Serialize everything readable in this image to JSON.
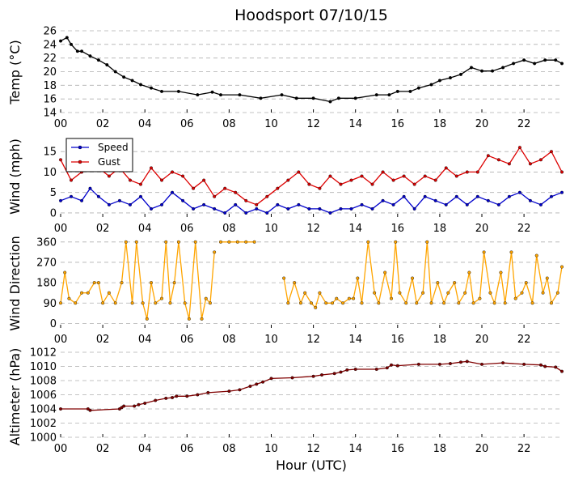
{
  "colors": {
    "temp": "#000000",
    "speed": "#0000cc",
    "gust": "#dd0000",
    "direction": "#ffa500",
    "altimeter": "#800000",
    "grid": "#b0b0b0"
  },
  "chart_data": [
    {
      "type": "line",
      "title": "Hoodsport 07/10/15",
      "xlabel": "",
      "ylabel": "Temp (°C)",
      "xlim": [
        0,
        23.8
      ],
      "ylim": [
        14,
        26
      ],
      "yticks": [
        14,
        16,
        18,
        20,
        22,
        24,
        26
      ],
      "xticks": [
        "00",
        "02",
        "04",
        "06",
        "08",
        "10",
        "12",
        "14",
        "16",
        "18",
        "20",
        "22"
      ],
      "grid": true,
      "series": [
        {
          "color": "temp",
          "x": [
            0,
            0.3,
            0.5,
            0.8,
            1.0,
            1.4,
            1.8,
            2.2,
            2.6,
            3.0,
            3.4,
            3.8,
            4.3,
            4.8,
            5.6,
            6.5,
            7.2,
            7.6,
            8.5,
            9.5,
            10.5,
            11.2,
            12.0,
            12.8,
            13.2,
            14.0,
            15.0,
            15.6,
            16.0,
            16.6,
            17.0,
            17.6,
            18.0,
            18.5,
            19.0,
            19.5,
            20.0,
            20.5,
            21.0,
            21.5,
            22.0,
            22.5,
            23.0,
            23.5,
            23.8
          ],
          "y": [
            24.5,
            25,
            24,
            23,
            23,
            22.3,
            21.7,
            21,
            20,
            19.2,
            18.7,
            18.1,
            17.6,
            17.1,
            17.1,
            16.6,
            17,
            16.6,
            16.6,
            16.1,
            16.6,
            16.1,
            16.1,
            15.6,
            16.1,
            16.1,
            16.6,
            16.6,
            17.1,
            17.1,
            17.6,
            18.1,
            18.7,
            19.1,
            19.6,
            20.6,
            20.1,
            20.1,
            20.6,
            21.2,
            21.7,
            21.2,
            21.7,
            21.7,
            21.2
          ]
        }
      ]
    },
    {
      "type": "line",
      "title": "",
      "xlabel": "",
      "ylabel": "Wind (mph)",
      "xlim": [
        0,
        23.8
      ],
      "ylim": [
        -1,
        19
      ],
      "yticks": [
        0,
        5,
        10,
        15
      ],
      "xticks": [
        "00",
        "02",
        "04",
        "06",
        "08",
        "10",
        "12",
        "14",
        "16",
        "18",
        "20",
        "22"
      ],
      "grid": true,
      "legend": "top-left",
      "series": [
        {
          "name": "Speed",
          "color": "speed",
          "x": [
            0,
            0.5,
            1.0,
            1.4,
            1.8,
            2.3,
            2.8,
            3.3,
            3.8,
            4.3,
            4.8,
            5.3,
            5.8,
            6.3,
            6.8,
            7.3,
            7.8,
            8.3,
            8.8,
            9.3,
            9.8,
            10.3,
            10.8,
            11.3,
            11.8,
            12.3,
            12.8,
            13.3,
            13.8,
            14.3,
            14.8,
            15.3,
            15.8,
            16.3,
            16.8,
            17.3,
            17.8,
            18.3,
            18.8,
            19.3,
            19.8,
            20.3,
            20.8,
            21.3,
            21.8,
            22.3,
            22.8,
            23.3,
            23.8
          ],
          "y": [
            3,
            4,
            3,
            6,
            4,
            2,
            3,
            2,
            4,
            1,
            2,
            5,
            3,
            1,
            2,
            1,
            0,
            2,
            0,
            1,
            0,
            2,
            1,
            2,
            1,
            1,
            0,
            1,
            1,
            2,
            1,
            3,
            2,
            4,
            1,
            4,
            3,
            2,
            4,
            2,
            4,
            3,
            2,
            4,
            5,
            3,
            2,
            4,
            5
          ]
        },
        {
          "name": "Gust",
          "color": "gust",
          "x": [
            0,
            0.5,
            1.0,
            1.4,
            1.8,
            2.3,
            2.8,
            3.3,
            3.8,
            4.3,
            4.8,
            5.3,
            5.8,
            6.3,
            6.8,
            7.3,
            7.8,
            8.3,
            8.8,
            9.3,
            9.8,
            10.3,
            10.8,
            11.3,
            11.8,
            12.3,
            12.8,
            13.3,
            13.8,
            14.3,
            14.8,
            15.3,
            15.8,
            16.3,
            16.8,
            17.3,
            17.8,
            18.3,
            18.8,
            19.3,
            19.8,
            20.3,
            20.8,
            21.3,
            21.8,
            22.3,
            22.8,
            23.3,
            23.8
          ],
          "y": [
            13,
            8,
            10,
            12,
            11,
            9,
            11,
            8,
            7,
            11,
            8,
            10,
            9,
            6,
            8,
            4,
            6,
            5,
            3,
            2,
            4,
            6,
            8,
            10,
            7,
            6,
            9,
            7,
            8,
            9,
            7,
            10,
            8,
            9,
            7,
            9,
            8,
            11,
            9,
            10,
            10,
            14,
            13,
            12,
            16,
            12,
            13,
            15,
            10
          ]
        }
      ]
    },
    {
      "type": "line",
      "title": "",
      "xlabel": "",
      "ylabel": "Wind Direction",
      "xlim": [
        0,
        23.8
      ],
      "ylim": [
        -20,
        370
      ],
      "yticks": [
        0,
        90,
        180,
        270,
        360
      ],
      "xticks": [
        "00",
        "02",
        "04",
        "06",
        "08",
        "10",
        "12",
        "14",
        "16",
        "18",
        "20",
        "22"
      ],
      "grid": true,
      "series": [
        {
          "color": "direction",
          "x": [
            0,
            0.2,
            0.4,
            0.7,
            1.0,
            1.3,
            1.6,
            1.8,
            2.0,
            2.3,
            2.6,
            2.9,
            3.1,
            3.4,
            3.6,
            3.9,
            4.1,
            4.3,
            4.5,
            4.8,
            5.0,
            5.2,
            5.4,
            5.6,
            5.9,
            6.1,
            6.4,
            6.7,
            6.9,
            7.1,
            7.3
          ],
          "y": [
            90,
            225,
            110,
            90,
            135,
            135,
            180,
            180,
            90,
            135,
            90,
            180,
            360,
            90,
            360,
            90,
            20,
            180,
            90,
            110,
            360,
            90,
            180,
            360,
            90,
            20,
            360,
            20,
            110,
            90,
            315
          ]
        },
        {
          "color": "direction",
          "x": [
            7.6,
            8.0,
            8.4,
            8.8,
            9.2
          ],
          "y": [
            360,
            360,
            360,
            360,
            360
          ]
        },
        {
          "color": "direction",
          "x": [
            10.6,
            10.8,
            11.1,
            11.4,
            11.6,
            11.9,
            12.1,
            12.3,
            12.6,
            12.9,
            13.1,
            13.4,
            13.7,
            13.9,
            14.1,
            14.3,
            14.6,
            14.9,
            15.1,
            15.4,
            15.7,
            15.9,
            16.1,
            16.4,
            16.7,
            16.9,
            17.2,
            17.4,
            17.6,
            17.9,
            18.2,
            18.4,
            18.7,
            18.9,
            19.2,
            19.4,
            19.6,
            19.9,
            20.1,
            20.4,
            20.6,
            20.9,
            21.1,
            21.4,
            21.6,
            21.9,
            22.1,
            22.4,
            22.6,
            22.9,
            23.1,
            23.3,
            23.6,
            23.8
          ],
          "y": [
            200,
            90,
            180,
            90,
            135,
            90,
            70,
            135,
            90,
            90,
            110,
            90,
            110,
            110,
            200,
            90,
            360,
            135,
            90,
            225,
            110,
            360,
            135,
            90,
            200,
            90,
            135,
            360,
            90,
            180,
            90,
            135,
            180,
            90,
            135,
            225,
            90,
            110,
            315,
            135,
            90,
            225,
            90,
            315,
            110,
            135,
            180,
            90,
            300,
            135,
            200,
            90,
            135,
            250
          ]
        }
      ]
    },
    {
      "type": "line",
      "title": "",
      "xlabel": "Hour (UTC)",
      "ylabel": "Altimeter (hPa)",
      "xlim": [
        0,
        23.8
      ],
      "ylim": [
        1000,
        1012
      ],
      "yticks": [
        1000,
        1002,
        1004,
        1006,
        1008,
        1010,
        1012
      ],
      "xticks": [
        "00",
        "02",
        "04",
        "06",
        "08",
        "10",
        "12",
        "14",
        "16",
        "18",
        "20",
        "22"
      ],
      "grid": true,
      "series": [
        {
          "color": "altimeter",
          "x": [
            0,
            1.3,
            1.4,
            2.8,
            2.9,
            3.0,
            3.5,
            3.7,
            4.0,
            4.5,
            5.0,
            5.3,
            5.5,
            6.0,
            6.5,
            7.0,
            8.0,
            8.5,
            9.0,
            9.3,
            9.6,
            10.0,
            11.0,
            12.0,
            12.4,
            13.0,
            13.3,
            13.6,
            14.0,
            15.0,
            15.5,
            15.7,
            16.0,
            17.0,
            18.0,
            18.5,
            19.0,
            19.3,
            20.0,
            21.0,
            22.0,
            22.8,
            23.0,
            23.5,
            23.8
          ],
          "y": [
            1004,
            1004,
            1003.8,
            1004,
            1004.2,
            1004.4,
            1004.4,
            1004.6,
            1004.8,
            1005.2,
            1005.5,
            1005.6,
            1005.8,
            1005.8,
            1006,
            1006.3,
            1006.5,
            1006.7,
            1007.2,
            1007.5,
            1007.8,
            1008.3,
            1008.4,
            1008.6,
            1008.8,
            1009,
            1009.2,
            1009.5,
            1009.6,
            1009.6,
            1009.8,
            1010.2,
            1010.1,
            1010.3,
            1010.3,
            1010.4,
            1010.6,
            1010.7,
            1010.3,
            1010.5,
            1010.3,
            1010.2,
            1010,
            1009.9,
            1009.3
          ]
        }
      ]
    }
  ]
}
